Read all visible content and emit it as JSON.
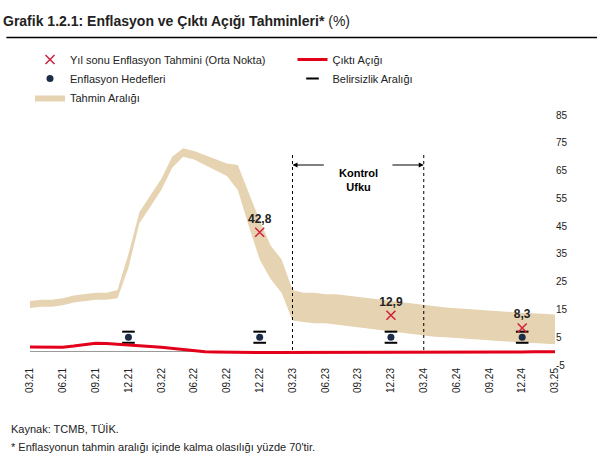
{
  "chart_data": {
    "type": "line",
    "title": "Grafik 1.2.1: Enflasyon ve Çıktı Açığı Tahminleri* (%)",
    "categories": [
      "03.21",
      null,
      null,
      "06.21",
      null,
      null,
      "09.21",
      null,
      null,
      "12.21",
      null,
      null,
      "03.22",
      null,
      null,
      "06.22",
      null,
      null,
      "09.22",
      null,
      null,
      "12.22",
      null,
      null,
      "03.23",
      null,
      null,
      "06.23",
      null,
      null,
      "09.23",
      null,
      null,
      "12.23",
      null,
      null,
      "03.24",
      null,
      null,
      "06.24",
      null,
      null,
      "09.24",
      null,
      null,
      "12.24",
      null,
      null,
      "03.25"
    ],
    "ylim": [
      -5,
      85
    ],
    "yticks": [
      -5,
      5,
      15,
      25,
      35,
      45,
      55,
      65,
      75,
      85
    ],
    "grid": false,
    "legend": "top",
    "series": [
      {
        "name": "Tahmin Aralığı",
        "type": "band",
        "color": "#e6d3b1",
        "lower": [
          15.5,
          16,
          16,
          16.5,
          17.5,
          18,
          18.5,
          18.5,
          19,
          30,
          46,
          52,
          58,
          66,
          70,
          69,
          67,
          65,
          63,
          58,
          45,
          33,
          26,
          21,
          11,
          10.5,
          10,
          10,
          9.5,
          9,
          8.5,
          8,
          7.5,
          7,
          6.5,
          6,
          5.5,
          5.2,
          5,
          4.7,
          4.4,
          4.1,
          3.8,
          3.5,
          3.3,
          3.1,
          2.9,
          2.7,
          2.5
        ],
        "upper": [
          18,
          18.5,
          18.5,
          19,
          20,
          20.5,
          21,
          21,
          22,
          35,
          50,
          56,
          62,
          70,
          73,
          72,
          70.5,
          69,
          67.5,
          67,
          57,
          47,
          38,
          33,
          22,
          21,
          21,
          20.5,
          20.5,
          20,
          19.5,
          19,
          18.5,
          18,
          17.5,
          17,
          16.5,
          16,
          15.7,
          15.4,
          15.1,
          14.8,
          14.5,
          14.2,
          14,
          13.8,
          13.6,
          13.4,
          13.2
        ]
      },
      {
        "name": "Belirsizlik Aralığı",
        "type": "range_marker",
        "color": "#000000",
        "marker": "dash",
        "x": [
          "12.21",
          "12.22",
          "12.23",
          "12.24"
        ],
        "low": [
          3,
          3,
          3,
          3
        ],
        "high": [
          7,
          7,
          7,
          7
        ]
      },
      {
        "name": "Enflasyon Hedefleri",
        "type": "scatter",
        "color": "#1c2d4a",
        "marker": "circle",
        "x": [
          "12.21",
          "12.22",
          "12.23",
          "12.24"
        ],
        "values": [
          5,
          5,
          5,
          5
        ]
      },
      {
        "name": "Çıktı Açığı",
        "type": "line",
        "color": "#e3001b",
        "line_style": "solid",
        "values": [
          1.5,
          1.5,
          1.4,
          1.4,
          1.8,
          2.4,
          2.8,
          2.7,
          2.5,
          2.3,
          2.0,
          1.7,
          1.4,
          1.0,
          0.5,
          0.1,
          -0.2,
          -0.3,
          -0.4,
          -0.4,
          -0.5,
          -0.5,
          -0.5,
          -0.5,
          -0.5,
          -0.5,
          -0.5,
          -0.5,
          -0.5,
          -0.5,
          -0.5,
          -0.5,
          -0.5,
          -0.5,
          -0.5,
          -0.5,
          -0.5,
          -0.5,
          -0.4,
          -0.4,
          -0.4,
          -0.4,
          -0.3,
          -0.3,
          -0.3,
          -0.3,
          -0.2,
          -0.2,
          -0.2
        ]
      },
      {
        "name": "Yıl sonu Enflasyon Tahmini (Orta Nokta)",
        "type": "scatter",
        "color": "#d21f3c",
        "marker": "x",
        "x": [
          "12.22",
          "12.23",
          "12.24"
        ],
        "values": [
          42.8,
          12.9,
          8.3
        ],
        "value_labels": [
          "42,8",
          "12,9",
          "8,3"
        ],
        "data_labels": true
      }
    ],
    "annotations": [
      {
        "text": "Kontrol Ufku",
        "x_start": "03.23",
        "x_end": "03.24"
      }
    ],
    "source": "Kaynak: TCMB, TÜİK.",
    "note": "* Enflasyonun tahmin aralığı içinde kalma olasılığı yüzde 70'tir."
  }
}
